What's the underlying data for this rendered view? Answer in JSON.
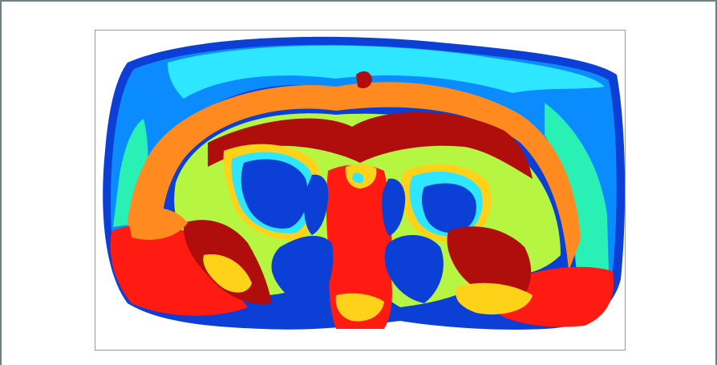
{
  "figure": {
    "colormap": [
      "#0b3fd6",
      "#0a8cff",
      "#2ee6ff",
      "#29f0b5",
      "#b6f542",
      "#ffd21a",
      "#ff8a1f",
      "#ff1a12",
      "#b00d0d"
    ],
    "background": "#ffffff",
    "frame_color": "#6e7f86",
    "box_border_color": "#9a9a9a"
  }
}
